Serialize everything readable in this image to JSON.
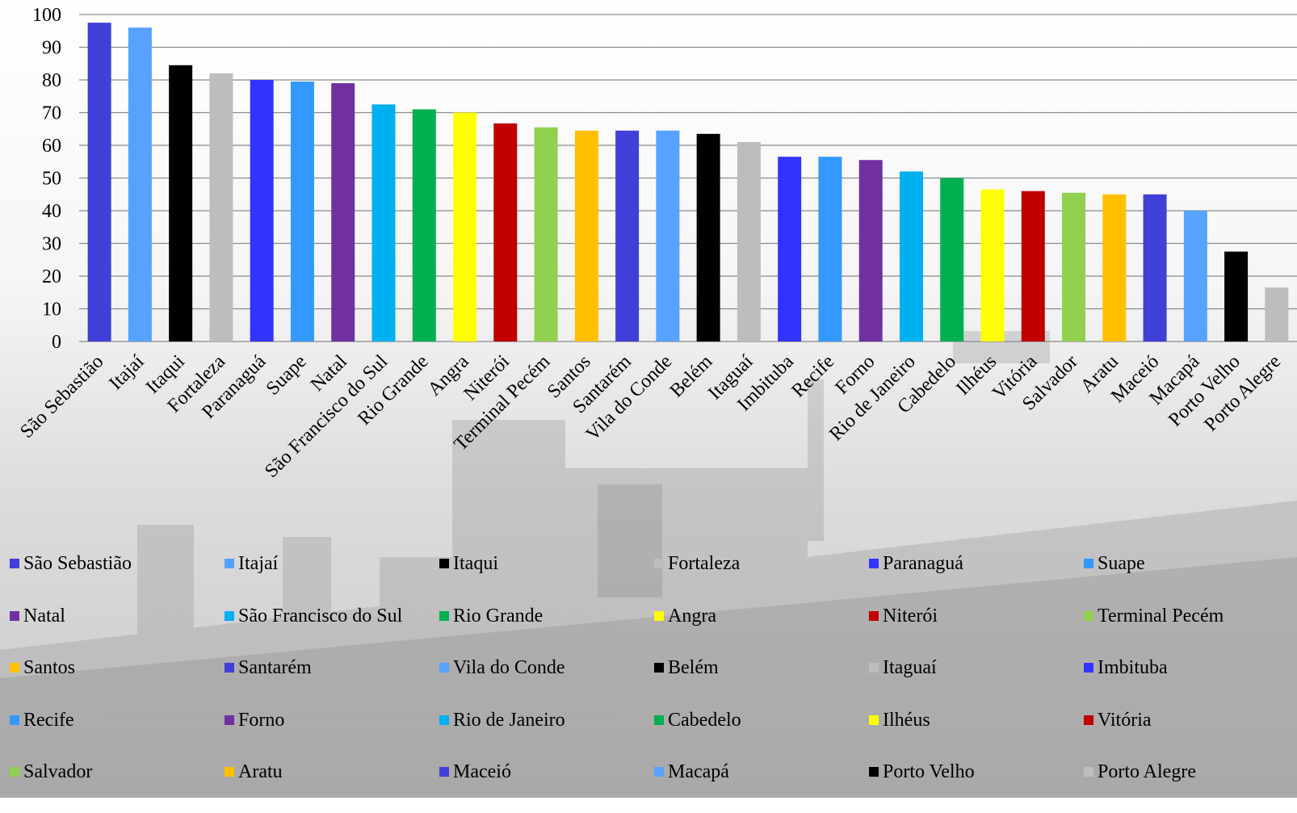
{
  "chart_data": {
    "type": "bar",
    "categories": [
      "São Sebastião",
      "Itajaí",
      "Itaqui",
      "Fortaleza",
      "Paranaguá",
      "Suape",
      "Natal",
      "São Francisco do Sul",
      "Rio Grande",
      "Angra",
      "Niterói",
      "Terminal Pecém",
      "Santos",
      "Santarém",
      "Vila do Conde",
      "Belém",
      "Itaguaí",
      "Imbituba",
      "Recife",
      "Forno",
      "Rio de Janeiro",
      "Cabedelo",
      "Ilhéus",
      "Vitória",
      "Salvador",
      "Aratu",
      "Maceió",
      "Macapá",
      "Porto Velho",
      "Porto Alegre"
    ],
    "values": [
      97.5,
      96,
      84.5,
      82,
      80,
      79.5,
      79,
      72.5,
      71,
      70,
      66.7,
      65.5,
      64.5,
      64.5,
      64.5,
      63.5,
      61,
      56.5,
      56.5,
      55.5,
      52,
      50,
      46.5,
      46,
      45.5,
      45,
      45,
      40,
      27.5,
      16.5
    ],
    "colors": [
      "#4040D8",
      "#57A2FF",
      "#000000",
      "#BDBDBD",
      "#3333FF",
      "#3399FF",
      "#7030A0",
      "#00B0F0",
      "#00B050",
      "#FFFF00",
      "#C00000",
      "#92D050",
      "#FFC000",
      "#4040D8",
      "#57A2FF",
      "#000000",
      "#BDBDBD",
      "#3333FF",
      "#3399FF",
      "#7030A0",
      "#00B0F0",
      "#00B050",
      "#FFFF00",
      "#C00000",
      "#92D050",
      "#FFC000",
      "#4040D8",
      "#57A2FF",
      "#000000",
      "#BDBDBD"
    ],
    "ylim": [
      0,
      100
    ],
    "yticks": [
      0,
      10,
      20,
      30,
      40,
      50,
      60,
      70,
      80,
      90,
      100
    ],
    "grid": true,
    "legend_position": "bottom",
    "background": "photo of a container ship (grayscale)"
  }
}
